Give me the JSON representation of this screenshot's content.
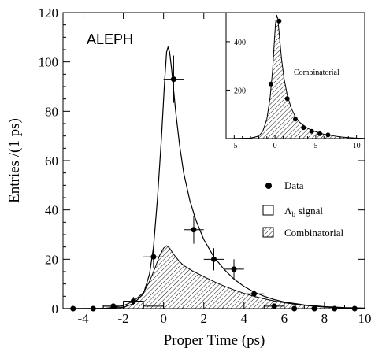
{
  "chart_data": [
    {
      "type": "scatter",
      "title": "",
      "experiment_label": "ALEPH",
      "xlabel": "Proper Time (ps)",
      "ylabel": "Entries /(1 ps)",
      "xlim": [
        -5,
        10
      ],
      "ylim": [
        0,
        120
      ],
      "xticks": [
        -4,
        -2,
        0,
        2,
        4,
        6,
        8,
        10
      ],
      "xtick_labels": [
        "-4",
        "-2",
        "0",
        "2",
        "4",
        "6",
        "8",
        "10"
      ],
      "yticks": [
        0,
        20,
        40,
        60,
        80,
        100,
        120
      ],
      "ytick_labels": [
        "0",
        "20",
        "40",
        "60",
        "80",
        "100",
        "120"
      ],
      "legend": {
        "placement": "right",
        "entries": [
          {
            "marker": "filled-circle",
            "label": "Data"
          },
          {
            "marker": "open-box",
            "label": "Λ",
            "subscript": "b",
            "label_suffix": "signal"
          },
          {
            "marker": "hatched-box",
            "label": "Combinatorial"
          }
        ]
      },
      "series": [
        {
          "name": "Data",
          "style": "points-with-error-bars",
          "points": [
            {
              "x": -4.5,
              "y": 0,
              "yerr": 0
            },
            {
              "x": -3.5,
              "y": 0,
              "yerr": 0
            },
            {
              "x": -2.5,
              "y": 1,
              "yerr": 0.8
            },
            {
              "x": -1.5,
              "y": 3,
              "yerr": 1.7
            },
            {
              "x": -0.5,
              "y": 21,
              "yerr": 4.6
            },
            {
              "x": 0.5,
              "y": 93,
              "yerr": 9.6
            },
            {
              "x": 1.5,
              "y": 32,
              "yerr": 5.7
            },
            {
              "x": 2.5,
              "y": 20,
              "yerr": 4.5
            },
            {
              "x": 3.5,
              "y": 16,
              "yerr": 4.0
            },
            {
              "x": 4.5,
              "y": 6,
              "yerr": 2.4
            },
            {
              "x": 5.5,
              "y": 1,
              "yerr": 0.8
            },
            {
              "x": 6.5,
              "y": 0,
              "yerr": 0
            },
            {
              "x": 7.5,
              "y": 0,
              "yerr": 0
            },
            {
              "x": 8.5,
              "y": 0,
              "yerr": 0
            },
            {
              "x": 9.5,
              "y": 0,
              "yerr": 0
            }
          ]
        },
        {
          "name": "Λb signal",
          "style": "line",
          "points": [
            [
              -5,
              0
            ],
            [
              -3,
              0.1
            ],
            [
              -2,
              0.5
            ],
            [
              -1.5,
              2
            ],
            [
              -1,
              6
            ],
            [
              -0.7,
              14
            ],
            [
              -0.5,
              25
            ],
            [
              -0.3,
              45
            ],
            [
              -0.1,
              70
            ],
            [
              0.05,
              92
            ],
            [
              0.15,
              104
            ],
            [
              0.22,
              106
            ],
            [
              0.3,
              104
            ],
            [
              0.4,
              97
            ],
            [
              0.6,
              80
            ],
            [
              0.8,
              66
            ],
            [
              1.0,
              55
            ],
            [
              1.3,
              44
            ],
            [
              1.6,
              36
            ],
            [
              2.0,
              28
            ],
            [
              2.5,
              21
            ],
            [
              3.0,
              16
            ],
            [
              3.5,
              12
            ],
            [
              4.0,
              9
            ],
            [
              4.5,
              6.7
            ],
            [
              5.0,
              5.0
            ],
            [
              5.5,
              3.7
            ],
            [
              6.0,
              2.7
            ],
            [
              7.0,
              1.5
            ],
            [
              8.0,
              0.8
            ],
            [
              9.0,
              0.4
            ],
            [
              10.0,
              0.2
            ]
          ]
        },
        {
          "name": "Combinatorial",
          "style": "hatched-area",
          "points": [
            [
              -5,
              0
            ],
            [
              -3,
              0.1
            ],
            [
              -2.5,
              0.5
            ],
            [
              -2,
              1.2
            ],
            [
              -1.5,
              3
            ],
            [
              -1,
              6.5
            ],
            [
              -0.7,
              11
            ],
            [
              -0.4,
              17
            ],
            [
              -0.2,
              21.5
            ],
            [
              0,
              24.5
            ],
            [
              0.15,
              25.5
            ],
            [
              0.3,
              24.5
            ],
            [
              0.5,
              22
            ],
            [
              0.8,
              19
            ],
            [
              1.0,
              17.5
            ],
            [
              1.5,
              15
            ],
            [
              2.0,
              13
            ],
            [
              2.5,
              11
            ],
            [
              3.0,
              9.2
            ],
            [
              3.5,
              7.6
            ],
            [
              4.0,
              6.2
            ],
            [
              4.5,
              5.0
            ],
            [
              5.0,
              4.0
            ],
            [
              5.5,
              3.1
            ],
            [
              6.0,
              2.4
            ],
            [
              6.5,
              1.8
            ],
            [
              7.0,
              1.3
            ],
            [
              8.0,
              0.6
            ],
            [
              9.0,
              0.25
            ],
            [
              10.0,
              0.1
            ]
          ]
        },
        {
          "name": "Λb signal (histogram)",
          "style": "open-histogram",
          "bins": [
            {
              "x0": -3,
              "x1": -2,
              "y": 1
            },
            {
              "x0": -2,
              "x1": -1,
              "y": 3
            },
            {
              "x0": -1,
              "x1": 0,
              "y": 1
            }
          ]
        }
      ]
    },
    {
      "type": "scatter",
      "title": "",
      "label": "Combinatorial",
      "xlim": [
        -6,
        11
      ],
      "ylim": [
        0,
        520
      ],
      "xticks": [
        -5,
        0,
        5,
        10
      ],
      "xtick_labels": [
        "-5",
        "0",
        "5",
        "10"
      ],
      "yticks": [
        200,
        400
      ],
      "ytick_labels": [
        "200",
        "400"
      ],
      "series": [
        {
          "name": "Combinatorial data",
          "style": "points",
          "points": [
            [
              -0.5,
              225
            ],
            [
              0.5,
              485
            ],
            [
              1.5,
              165
            ],
            [
              2.5,
              80
            ],
            [
              3.5,
              45
            ],
            [
              4.5,
              30
            ],
            [
              5.5,
              20
            ],
            [
              6.5,
              15
            ]
          ]
        },
        {
          "name": "Combinatorial fit",
          "style": "hatched-area",
          "points": [
            [
              -6,
              0
            ],
            [
              -3,
              2
            ],
            [
              -2,
              10
            ],
            [
              -1.5,
              30
            ],
            [
              -1,
              80
            ],
            [
              -0.6,
              170
            ],
            [
              -0.3,
              280
            ],
            [
              -0.1,
              390
            ],
            [
              0.05,
              470
            ],
            [
              0.2,
              510
            ],
            [
              0.35,
              495
            ],
            [
              0.55,
              420
            ],
            [
              0.8,
              330
            ],
            [
              1.1,
              250
            ],
            [
              1.5,
              180
            ],
            [
              2.0,
              125
            ],
            [
              2.5,
              90
            ],
            [
              3.0,
              68
            ],
            [
              4.0,
              42
            ],
            [
              5.0,
              28
            ],
            [
              6.0,
              18
            ],
            [
              7.0,
              12
            ],
            [
              8.0,
              7
            ],
            [
              9.0,
              4
            ],
            [
              10.0,
              2
            ],
            [
              11.0,
              1
            ]
          ]
        }
      ]
    }
  ]
}
